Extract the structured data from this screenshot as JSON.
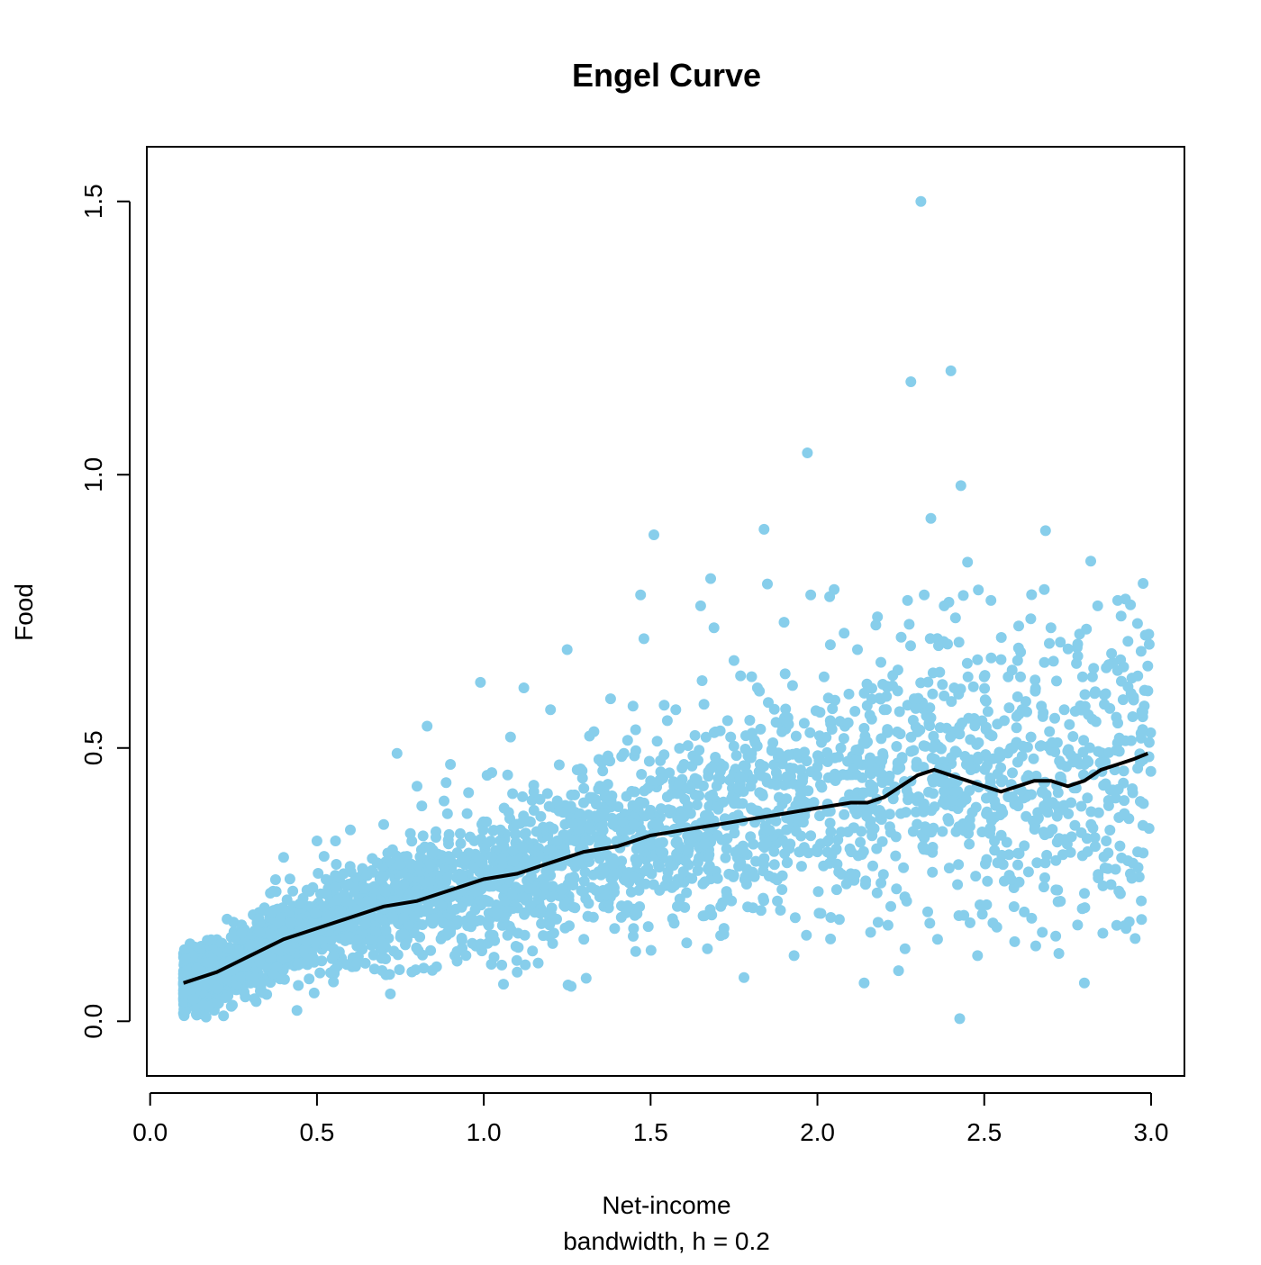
{
  "chart_data": {
    "type": "scatter",
    "title": "Engel Curve",
    "xlabel": "Net-income",
    "subtitle": "bandwidth, h = 0.2",
    "ylabel": "Food",
    "xlim": [
      -0.01,
      3.1
    ],
    "ylim": [
      -0.1,
      1.6
    ],
    "xticks": [
      "0.0",
      "0.5",
      "1.0",
      "1.5",
      "2.0",
      "2.5",
      "3.0"
    ],
    "yticks": [
      "0.0",
      "0.5",
      "1.0",
      "1.5"
    ],
    "grid": false,
    "colors": {
      "points": "#87ceeb",
      "curve": "#000000",
      "axis": "#000000"
    },
    "series": [
      {
        "type": "scatter",
        "points": [
          [
            0.1,
            0.05
          ],
          [
            0.13,
            0.04
          ],
          [
            0.16,
            0.03
          ],
          [
            0.18,
            0.09
          ],
          [
            0.2,
            0.06
          ],
          [
            0.22,
            0.01
          ],
          [
            0.24,
            0.11
          ],
          [
            0.27,
            0.08
          ],
          [
            0.3,
            0.14
          ],
          [
            0.33,
            0.07
          ],
          [
            0.36,
            0.16
          ],
          [
            0.38,
            0.1
          ],
          [
            0.4,
            0.3
          ],
          [
            0.42,
            0.18
          ],
          [
            0.44,
            0.02
          ],
          [
            0.47,
            0.24
          ],
          [
            0.5,
            0.33
          ],
          [
            0.52,
            0.21
          ],
          [
            0.55,
            0.12
          ],
          [
            0.58,
            0.27
          ],
          [
            0.6,
            0.35
          ],
          [
            0.62,
            0.15
          ],
          [
            0.65,
            0.22
          ],
          [
            0.68,
            0.29
          ],
          [
            0.7,
            0.36
          ],
          [
            0.72,
            0.05
          ],
          [
            0.74,
            0.49
          ],
          [
            0.76,
            0.19
          ],
          [
            0.8,
            0.43
          ],
          [
            0.83,
            0.54
          ],
          [
            0.85,
            0.31
          ],
          [
            0.88,
            0.24
          ],
          [
            0.9,
            0.47
          ],
          [
            0.92,
            0.11
          ],
          [
            0.95,
            0.38
          ],
          [
            0.97,
            0.28
          ],
          [
            0.99,
            0.62
          ],
          [
            1.01,
            0.45
          ],
          [
            1.03,
            0.2
          ],
          [
            1.05,
            0.35
          ],
          [
            1.08,
            0.52
          ],
          [
            1.1,
            0.09
          ],
          [
            1.12,
            0.61
          ],
          [
            1.15,
            0.42
          ],
          [
            1.18,
            0.25
          ],
          [
            1.2,
            0.57
          ],
          [
            1.22,
            0.33
          ],
          [
            1.25,
            0.68
          ],
          [
            1.28,
            0.46
          ],
          [
            1.3,
            0.15
          ],
          [
            1.33,
            0.53
          ],
          [
            1.36,
            0.38
          ],
          [
            1.38,
            0.59
          ],
          [
            1.4,
            0.27
          ],
          [
            1.42,
            0.49
          ],
          [
            1.45,
            0.36
          ],
          [
            1.47,
            0.78
          ],
          [
            1.48,
            0.7
          ],
          [
            1.5,
            0.44
          ],
          [
            1.51,
            0.89
          ],
          [
            1.53,
            0.31
          ],
          [
            1.55,
            0.55
          ],
          [
            1.58,
            0.21
          ],
          [
            1.6,
            0.47
          ],
          [
            1.62,
            0.38
          ],
          [
            1.65,
            0.76
          ],
          [
            1.66,
            0.58
          ],
          [
            1.68,
            0.81
          ],
          [
            1.69,
            0.72
          ],
          [
            1.7,
            0.34
          ],
          [
            1.72,
            0.17
          ],
          [
            1.74,
            0.52
          ],
          [
            1.75,
            0.66
          ],
          [
            1.77,
            0.29
          ],
          [
            1.78,
            0.08
          ],
          [
            1.8,
            0.43
          ],
          [
            1.82,
            0.61
          ],
          [
            1.84,
            0.9
          ],
          [
            1.85,
            0.8
          ],
          [
            1.86,
            0.37
          ],
          [
            1.88,
            0.22
          ],
          [
            1.9,
            0.73
          ],
          [
            1.91,
            0.55
          ],
          [
            1.93,
            0.12
          ],
          [
            1.95,
            0.46
          ],
          [
            1.97,
            1.04
          ],
          [
            1.98,
            0.78
          ],
          [
            2.0,
            0.31
          ],
          [
            2.02,
            0.63
          ],
          [
            2.04,
            0.19
          ],
          [
            2.05,
            0.79
          ],
          [
            2.07,
            0.5
          ],
          [
            2.08,
            0.71
          ],
          [
            2.1,
            0.27
          ],
          [
            2.12,
            0.68
          ],
          [
            2.14,
            0.07
          ],
          [
            2.16,
            0.42
          ],
          [
            2.18,
            0.74
          ],
          [
            2.2,
            0.57
          ],
          [
            2.22,
            0.21
          ],
          [
            2.25,
            0.38
          ],
          [
            2.27,
            0.77
          ],
          [
            2.28,
            1.17
          ],
          [
            2.29,
            0.59
          ],
          [
            2.31,
            1.5
          ],
          [
            2.32,
            0.78
          ],
          [
            2.33,
            0.35
          ],
          [
            2.34,
            0.92
          ],
          [
            2.36,
            0.15
          ],
          [
            2.38,
            0.76
          ],
          [
            2.39,
            0.69
          ],
          [
            2.4,
            1.19
          ],
          [
            2.41,
            0.61
          ],
          [
            2.42,
            0.25
          ],
          [
            2.43,
            0.98
          ],
          [
            2.45,
            0.84
          ],
          [
            2.46,
            0.46
          ],
          [
            2.48,
            0.12
          ],
          [
            2.5,
            0.63
          ],
          [
            2.52,
            0.77
          ],
          [
            2.54,
            0.29
          ],
          [
            2.56,
            0.55
          ],
          [
            2.58,
            0.41
          ],
          [
            2.6,
            0.66
          ],
          [
            2.62,
            0.2
          ],
          [
            2.64,
            0.52
          ],
          [
            2.66,
            0.37
          ],
          [
            2.68,
            0.79
          ],
          [
            2.7,
            0.72
          ],
          [
            2.72,
            0.24
          ],
          [
            2.74,
            0.57
          ],
          [
            2.76,
            0.4
          ],
          [
            2.78,
            0.69
          ],
          [
            2.8,
            0.07
          ],
          [
            2.82,
            0.36
          ],
          [
            2.84,
            0.76
          ],
          [
            2.86,
            0.58
          ],
          [
            2.88,
            0.25
          ],
          [
            2.9,
            0.77
          ],
          [
            2.92,
            0.38
          ],
          [
            2.94,
            0.6
          ],
          [
            2.96,
            0.31
          ],
          [
            2.99,
            0.65
          ]
        ]
      },
      {
        "type": "line",
        "name": "",
        "x": [
          0.1,
          0.2,
          0.3,
          0.4,
          0.5,
          0.6,
          0.7,
          0.8,
          0.9,
          1.0,
          1.1,
          1.2,
          1.3,
          1.4,
          1.5,
          1.6,
          1.7,
          1.8,
          1.9,
          2.0,
          2.1,
          2.15,
          2.2,
          2.25,
          2.3,
          2.35,
          2.4,
          2.45,
          2.5,
          2.55,
          2.6,
          2.65,
          2.7,
          2.75,
          2.8,
          2.85,
          2.9,
          2.95,
          2.99
        ],
        "y": [
          0.07,
          0.09,
          0.12,
          0.15,
          0.17,
          0.19,
          0.21,
          0.22,
          0.24,
          0.26,
          0.27,
          0.29,
          0.31,
          0.32,
          0.34,
          0.35,
          0.36,
          0.37,
          0.38,
          0.39,
          0.4,
          0.4,
          0.41,
          0.43,
          0.45,
          0.46,
          0.45,
          0.44,
          0.43,
          0.42,
          0.43,
          0.44,
          0.44,
          0.43,
          0.44,
          0.46,
          0.47,
          0.48,
          0.49
        ]
      }
    ]
  }
}
